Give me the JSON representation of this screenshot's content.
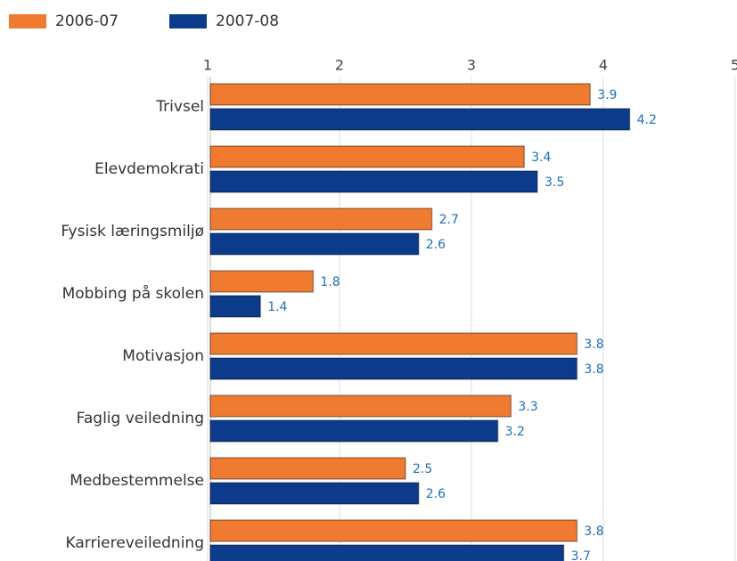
{
  "chart_data": {
    "type": "bar",
    "orientation": "horizontal",
    "categories": [
      "Trivsel",
      "Elevdemokrati",
      "Fysisk læringsmiljø",
      "Mobbing på skolen",
      "Motivasjon",
      "Faglig veiledning",
      "Medbestemmelse",
      "Karriereveiledning"
    ],
    "series": [
      {
        "name": "2006-07",
        "color": "#f07a2f",
        "values": [
          3.9,
          3.4,
          2.7,
          1.8,
          3.8,
          3.3,
          2.5,
          3.8
        ]
      },
      {
        "name": "2007-08",
        "color": "#0d3b8c",
        "values": [
          4.2,
          3.5,
          2.6,
          1.4,
          3.8,
          3.2,
          2.6,
          3.7
        ]
      }
    ],
    "xlim": [
      1,
      5
    ],
    "xticks": [
      1,
      2,
      3,
      4,
      5
    ],
    "grid": true,
    "legend": "top-left"
  }
}
